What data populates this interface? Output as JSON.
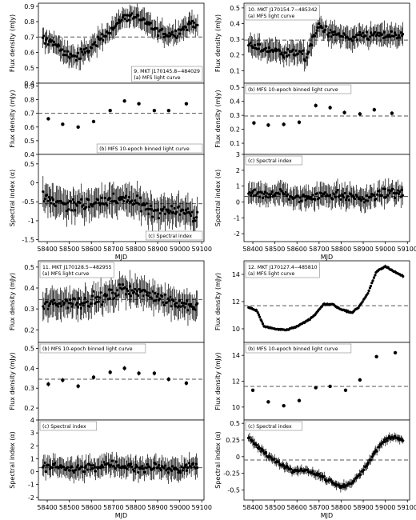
{
  "figure": {
    "x_axis_label": "MJD",
    "x_ticks": [
      58400,
      58500,
      58600,
      58700,
      58800,
      58900,
      59000,
      59100
    ],
    "xlim": [
      58360,
      59110
    ]
  },
  "chart_data": [
    {
      "type": "scatter",
      "source_name": "9. MKT J170145.8−484029",
      "panels": [
        {
          "label": "(a) MFS light curve",
          "ylabel": "Flux density (mJy)",
          "ylim": [
            0.4,
            0.92
          ],
          "yticks": [
            0.4,
            0.5,
            0.6,
            0.7,
            0.8,
            0.9
          ],
          "reference_line": 0.7,
          "anchors": [
            [
              58380,
              0.68
            ],
            [
              58430,
              0.67
            ],
            [
              58470,
              0.6
            ],
            [
              58530,
              0.57
            ],
            [
              58575,
              0.6
            ],
            [
              58610,
              0.65
            ],
            [
              58650,
              0.7
            ],
            [
              58700,
              0.76
            ],
            [
              58740,
              0.82
            ],
            [
              58780,
              0.84
            ],
            [
              58820,
              0.82
            ],
            [
              58860,
              0.78
            ],
            [
              58900,
              0.74
            ],
            [
              58940,
              0.72
            ],
            [
              58980,
              0.72
            ],
            [
              59020,
              0.76
            ],
            [
              59060,
              0.8
            ],
            [
              59080,
              0.77
            ]
          ],
          "err": 0.06
        },
        {
          "label": "(b) MFS 10-epoch binned light curve",
          "ylabel": "Flux density (mJy)",
          "ylim": [
            0.4,
            0.92
          ],
          "yticks": [
            0.4,
            0.5,
            0.6,
            0.7,
            0.8,
            0.9
          ],
          "reference_line": 0.7,
          "points": [
            [
              58405,
              0.66
            ],
            [
              58470,
              0.62
            ],
            [
              58540,
              0.6
            ],
            [
              58610,
              0.64
            ],
            [
              58685,
              0.72
            ],
            [
              58750,
              0.79
            ],
            [
              58815,
              0.77
            ],
            [
              58885,
              0.72
            ],
            [
              58950,
              0.72
            ],
            [
              59030,
              0.77
            ]
          ],
          "err": 0.01
        },
        {
          "label": "(c) Spectral index",
          "ylabel": "Spectral index (α)",
          "ylim": [
            -1.55,
            0.75
          ],
          "yticks": [
            -1.5,
            -1.0,
            -0.5,
            0.0,
            0.5
          ],
          "reference_line": -0.55,
          "anchors": [
            [
              58380,
              -0.4
            ],
            [
              58450,
              -0.5
            ],
            [
              58520,
              -0.6
            ],
            [
              58600,
              -0.55
            ],
            [
              58680,
              -0.45
            ],
            [
              58760,
              -0.45
            ],
            [
              58840,
              -0.6
            ],
            [
              58900,
              -0.75
            ],
            [
              58960,
              -0.7
            ],
            [
              59030,
              -0.75
            ],
            [
              59080,
              -0.95
            ]
          ],
          "err": 0.35
        }
      ]
    },
    {
      "type": "scatter",
      "source_name": "10. MKT J170154.7−485342",
      "panels": [
        {
          "label": "(a) MFS light curve",
          "ylabel": "Flux density (mJy)",
          "ylim": [
            0.02,
            0.53
          ],
          "yticks": [
            0.1,
            0.2,
            0.3,
            0.4,
            0.5
          ],
          "reference_line": 0.295,
          "anchors": [
            [
              58380,
              0.26
            ],
            [
              58440,
              0.24
            ],
            [
              58500,
              0.23
            ],
            [
              58560,
              0.21
            ],
            [
              58610,
              0.22
            ],
            [
              58640,
              0.18
            ],
            [
              58670,
              0.3
            ],
            [
              58700,
              0.38
            ],
            [
              58740,
              0.35
            ],
            [
              58790,
              0.32
            ],
            [
              58840,
              0.3
            ],
            [
              58900,
              0.32
            ],
            [
              58960,
              0.33
            ],
            [
              59020,
              0.32
            ],
            [
              59080,
              0.33
            ]
          ],
          "err": 0.06
        },
        {
          "label": "(b) MFS 10-epoch binned light curve",
          "ylabel": "Flux density (mJy)",
          "ylim": [
            0.02,
            0.53
          ],
          "yticks": [
            0.1,
            0.2,
            0.3,
            0.4,
            0.5
          ],
          "reference_line": 0.295,
          "points": [
            [
              58405,
              0.245
            ],
            [
              58470,
              0.23
            ],
            [
              58540,
              0.235
            ],
            [
              58610,
              0.25
            ],
            [
              58685,
              0.37
            ],
            [
              58750,
              0.355
            ],
            [
              58815,
              0.32
            ],
            [
              58885,
              0.31
            ],
            [
              58950,
              0.34
            ],
            [
              59030,
              0.315
            ]
          ],
          "err": 0.015
        },
        {
          "label": "(c) Spectral index",
          "ylabel": "Spectral index (α)",
          "ylim": [
            -2.5,
            3.0
          ],
          "yticks": [
            -2,
            -1,
            0,
            1,
            2,
            3
          ],
          "reference_line": 0.35,
          "anchors": [
            [
              58380,
              0.5
            ],
            [
              58450,
              0.4
            ],
            [
              58520,
              0.6
            ],
            [
              58600,
              0.2
            ],
            [
              58680,
              0.4
            ],
            [
              58760,
              0.5
            ],
            [
              58840,
              0.3
            ],
            [
              58900,
              0.2
            ],
            [
              58960,
              0.4
            ],
            [
              59030,
              0.6
            ],
            [
              59080,
              0.5
            ]
          ],
          "err": 0.6
        }
      ]
    },
    {
      "type": "scatter",
      "source_name": "11. MKT J170128.5−482955",
      "panels": [
        {
          "label": "(a) MFS light curve",
          "ylabel": "Flux density (mJy)",
          "ylim": [
            0.14,
            0.53
          ],
          "yticks": [
            0.2,
            0.3,
            0.4,
            0.5
          ],
          "reference_line": 0.345,
          "anchors": [
            [
              58380,
              0.31
            ],
            [
              58450,
              0.33
            ],
            [
              58520,
              0.33
            ],
            [
              58600,
              0.34
            ],
            [
              58680,
              0.36
            ],
            [
              58750,
              0.4
            ],
            [
              58820,
              0.38
            ],
            [
              58890,
              0.36
            ],
            [
              58950,
              0.34
            ],
            [
              59020,
              0.32
            ],
            [
              59080,
              0.31
            ]
          ],
          "err": 0.06
        },
        {
          "label": "(b) MFS 10-epoch binned light curve",
          "ylabel": "Flux density (mJy)",
          "ylim": [
            0.14,
            0.53
          ],
          "yticks": [
            0.2,
            0.3,
            0.4,
            0.5
          ],
          "reference_line": 0.345,
          "points": [
            [
              58405,
              0.32
            ],
            [
              58470,
              0.34
            ],
            [
              58540,
              0.31
            ],
            [
              58610,
              0.355
            ],
            [
              58685,
              0.38
            ],
            [
              58750,
              0.4
            ],
            [
              58815,
              0.375
            ],
            [
              58885,
              0.375
            ],
            [
              58950,
              0.345
            ],
            [
              59030,
              0.325
            ]
          ],
          "err": 0.012
        },
        {
          "label": "(c) Spectral index",
          "ylabel": "Spectral index (α)",
          "ylim": [
            -2.2,
            4.0
          ],
          "yticks": [
            -2,
            -1,
            0,
            1,
            2,
            3,
            4
          ],
          "reference_line": 0.3,
          "anchors": [
            [
              58380,
              0.3
            ],
            [
              58450,
              0.4
            ],
            [
              58520,
              0.2
            ],
            [
              58600,
              0.3
            ],
            [
              58680,
              0.5
            ],
            [
              58760,
              0.4
            ],
            [
              58840,
              0.3
            ],
            [
              58900,
              0.4
            ],
            [
              58960,
              0.2
            ],
            [
              59030,
              0.3
            ],
            [
              59080,
              0.5
            ]
          ],
          "err": 0.7
        }
      ]
    },
    {
      "type": "scatter",
      "source_name": "12. MKT J170127.4−485810",
      "panels": [
        {
          "label": "(a) MFS light curve",
          "ylabel": "Flux density (mJy)",
          "ylim": [
            9.0,
            15.0
          ],
          "yticks": [
            10,
            12,
            14
          ],
          "reference_line": 11.7,
          "anchors": [
            [
              58380,
              11.6
            ],
            [
              58420,
              11.3
            ],
            [
              58450,
              10.2
            ],
            [
              58500,
              10.0
            ],
            [
              58550,
              9.9
            ],
            [
              58600,
              10.2
            ],
            [
              58640,
              10.5
            ],
            [
              58680,
              11.0
            ],
            [
              58720,
              11.8
            ],
            [
              58760,
              11.8
            ],
            [
              58800,
              11.4
            ],
            [
              58850,
              11.2
            ],
            [
              58880,
              11.6
            ],
            [
              58920,
              12.6
            ],
            [
              58960,
              14.2
            ],
            [
              59000,
              14.6
            ],
            [
              59040,
              14.2
            ],
            [
              59080,
              13.9
            ]
          ],
          "err": 0.1
        },
        {
          "label": "(b) MFS 10-epoch binned light curve",
          "ylabel": "Flux density (mJy)",
          "ylim": [
            9.0,
            15.0
          ],
          "yticks": [
            10,
            12,
            14
          ],
          "reference_line": 11.6,
          "points": [
            [
              58400,
              11.3
            ],
            [
              58470,
              10.4
            ],
            [
              58540,
              10.1
            ],
            [
              58610,
              10.5
            ],
            [
              58685,
              11.5
            ],
            [
              58750,
              11.6
            ],
            [
              58820,
              11.3
            ],
            [
              58885,
              12.1
            ],
            [
              58960,
              13.9
            ],
            [
              59045,
              14.2
            ]
          ],
          "err": 0.03
        },
        {
          "label": "(c) Spectral index",
          "ylabel": "Spectral index (α)",
          "ylim": [
            -0.65,
            0.55
          ],
          "yticks": [
            -0.5,
            -0.25,
            0.0,
            0.25,
            0.5
          ],
          "reference_line": -0.05,
          "anchors": [
            [
              58380,
              0.3
            ],
            [
              58420,
              0.15
            ],
            [
              58470,
              0.0
            ],
            [
              58520,
              -0.1
            ],
            [
              58580,
              -0.2
            ],
            [
              58640,
              -0.2
            ],
            [
              58700,
              -0.28
            ],
            [
              58760,
              -0.38
            ],
            [
              58800,
              -0.45
            ],
            [
              58840,
              -0.4
            ],
            [
              58880,
              -0.3
            ],
            [
              58920,
              -0.1
            ],
            [
              58960,
              0.1
            ],
            [
              59000,
              0.25
            ],
            [
              59040,
              0.3
            ],
            [
              59080,
              0.25
            ]
          ],
          "err": 0.06
        }
      ]
    }
  ]
}
